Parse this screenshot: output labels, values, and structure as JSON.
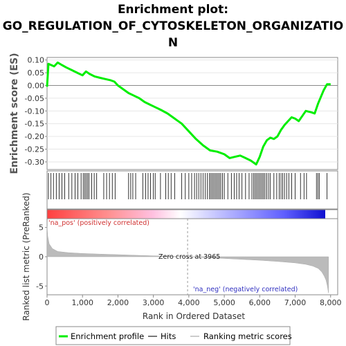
{
  "chart_data": {
    "type": "line",
    "title_lines": [
      "Enrichment plot:",
      "GO_REGULATION_OF_CYTOSKELETON_ORGANIZATIO",
      "N"
    ],
    "es_panel": {
      "ylabel": "Enrichment score (ES)",
      "ylim": [
        -0.33,
        0.11
      ],
      "yticks": [
        "0.10",
        "0.05",
        "0.00",
        "-0.05",
        "-0.10",
        "-0.15",
        "-0.20",
        "-0.25",
        "-0.30"
      ],
      "ytick_values": [
        0.1,
        0.05,
        0.0,
        -0.05,
        -0.1,
        -0.15,
        -0.2,
        -0.25,
        -0.3
      ],
      "series": [
        {
          "name": "Enrichment profile",
          "color": "#00ee00",
          "x": [
            0,
            40,
            200,
            300,
            420,
            550,
            700,
            850,
            1000,
            1100,
            1200,
            1350,
            1500,
            1650,
            1800,
            1900,
            2000,
            2150,
            2300,
            2450,
            2600,
            2750,
            2900,
            3050,
            3200,
            3400,
            3600,
            3800,
            4000,
            4200,
            4400,
            4600,
            4800,
            5000,
            5150,
            5300,
            5450,
            5600,
            5750,
            5900,
            6000,
            6100,
            6200,
            6300,
            6400,
            6500,
            6600,
            6700,
            6800,
            6900,
            7000,
            7100,
            7200,
            7300,
            7450,
            7550,
            7650,
            7800,
            7900,
            8000
          ],
          "y": [
            -0.005,
            0.085,
            0.075,
            0.09,
            0.08,
            0.07,
            0.06,
            0.05,
            0.04,
            0.055,
            0.045,
            0.035,
            0.03,
            0.025,
            0.02,
            0.015,
            0.0,
            -0.015,
            -0.03,
            -0.04,
            -0.05,
            -0.065,
            -0.075,
            -0.085,
            -0.095,
            -0.11,
            -0.13,
            -0.15,
            -0.18,
            -0.21,
            -0.235,
            -0.255,
            -0.26,
            -0.27,
            -0.285,
            -0.28,
            -0.275,
            -0.285,
            -0.295,
            -0.31,
            -0.28,
            -0.24,
            -0.215,
            -0.205,
            -0.21,
            -0.2,
            -0.175,
            -0.155,
            -0.14,
            -0.125,
            -0.13,
            -0.14,
            -0.12,
            -0.1,
            -0.105,
            -0.11,
            -0.07,
            -0.02,
            0.005,
            0.005
          ]
        }
      ]
    },
    "hits_panel": {
      "legend_name": "Hits",
      "positions": [
        40,
        110,
        180,
        260,
        340,
        420,
        500,
        610,
        700,
        790,
        870,
        960,
        1020,
        1060,
        1100,
        1140,
        1180,
        1260,
        1330,
        1400,
        1600,
        1680,
        1760,
        1840,
        1920,
        2300,
        2360,
        2420,
        2500,
        2700,
        2780,
        2850,
        2920,
        3000,
        3050,
        3200,
        3350,
        3420,
        3500,
        3600,
        3800,
        3900,
        4000,
        4080,
        4160,
        4220,
        4280,
        4340,
        4400,
        4460,
        4520,
        4580,
        4620,
        4660,
        4700,
        4740,
        4780,
        4820,
        4860,
        4900,
        4950,
        5000,
        5100,
        5200,
        5280,
        5350,
        5420,
        5500,
        5600,
        5700,
        5780,
        5830,
        5870,
        5910,
        5950,
        5990,
        6030,
        6070,
        6110,
        6150,
        6200,
        6250,
        6300,
        6400,
        6480,
        6550,
        6600,
        6650,
        6700,
        6760,
        6820,
        6900,
        7000,
        7150,
        7250,
        7320,
        7600,
        7640,
        7680,
        7900
      ]
    },
    "rank_panel": {
      "ylabel": "Ranked list metric (PreRanked)",
      "ylim": [
        -6.5,
        6.5
      ],
      "yticks": [
        "5",
        "0",
        "-5"
      ],
      "ytick_values": [
        5,
        0,
        -5
      ],
      "zero_cross_label": "Zero cross at 3965",
      "zero_cross": 3965,
      "pos_label": "'na_pos' (positively correlated)",
      "neg_label": "'na_neg' (negatively correlated)",
      "metric_x": [
        0,
        20,
        60,
        150,
        300,
        600,
        1000,
        1500,
        2000,
        2500,
        3000,
        3500,
        3965,
        4500,
        5000,
        5500,
        6000,
        6500,
        7000,
        7300,
        7500,
        7650,
        7750,
        7820,
        7870,
        7910,
        7940
      ],
      "metric_y": [
        5.2,
        3.5,
        2.2,
        1.4,
        0.9,
        0.7,
        0.55,
        0.45,
        0.35,
        0.25,
        0.15,
        0.07,
        0.0,
        -0.15,
        -0.3,
        -0.45,
        -0.6,
        -0.8,
        -1.05,
        -1.3,
        -1.6,
        -2.0,
        -2.6,
        -3.3,
        -4.0,
        -5.0,
        -6.2
      ]
    },
    "xaxis": {
      "label": "Rank in Ordered Dataset",
      "xlim": [
        0,
        8200
      ],
      "ticks": [
        "0",
        "1,000",
        "2,000",
        "3,000",
        "4,000",
        "5,000",
        "6,000",
        "7,000",
        "8,000"
      ],
      "tick_values": [
        0,
        1000,
        2000,
        3000,
        4000,
        5000,
        6000,
        7000,
        8000
      ]
    },
    "legend": [
      {
        "label": "Enrichment profile",
        "color": "#00ee00"
      },
      {
        "label": "Hits",
        "color": "#777777"
      },
      {
        "label": "Ranking metric scores",
        "color": "#cccccc"
      }
    ]
  }
}
